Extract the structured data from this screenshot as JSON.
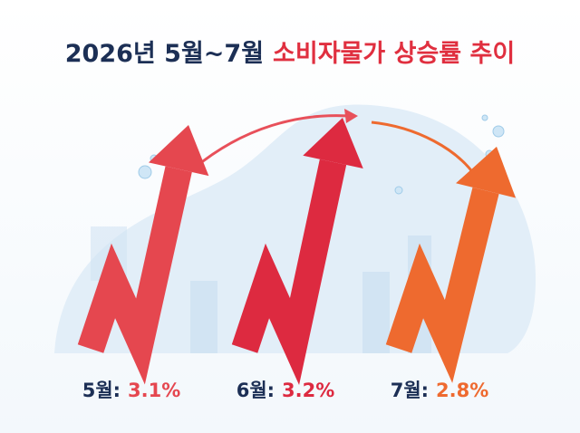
{
  "chart_data": {
    "type": "arrow",
    "title_period": "2026년 5월~7월",
    "title": "소비자물가 상승률 추이",
    "categories": [
      "5월:",
      "6월:",
      "7월:"
    ],
    "values": [
      3.1,
      3.2,
      2.8
    ],
    "value_labels": [
      "3.1%",
      "3.2%",
      "2.8%"
    ],
    "colors": [
      "#e5474f",
      "#dd2a40",
      "#ee6a2f"
    ]
  }
}
